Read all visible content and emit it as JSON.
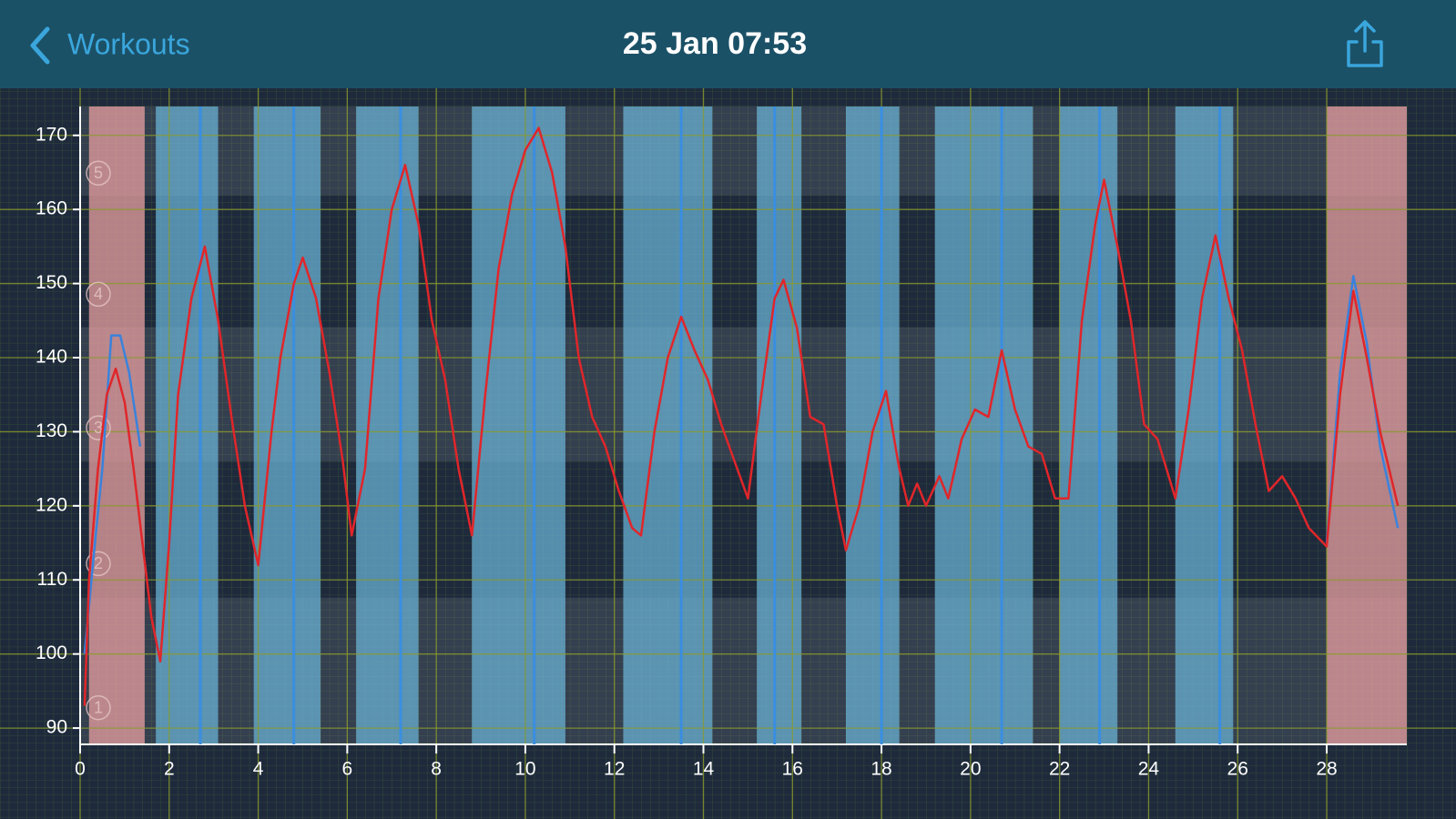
{
  "header": {
    "back": "Workouts",
    "title": "25 Jan 07:53"
  },
  "chart_data": {
    "type": "line",
    "xlim": [
      0,
      29.8
    ],
    "ylim": [
      87.8,
      173.9
    ],
    "xticks": [
      0,
      2,
      4,
      6,
      8,
      10,
      12,
      14,
      16,
      18,
      20,
      22,
      24,
      26,
      28
    ],
    "yticks": [
      90,
      100,
      110,
      120,
      130,
      140,
      150,
      160,
      170
    ],
    "grid": true,
    "zone_bounds": [
      107.6,
      126,
      144.1,
      161.9
    ],
    "zone_labels": [
      "1",
      "2",
      "3",
      "4",
      "5"
    ],
    "warmup_cooldown": [
      [
        0.2,
        1.45
      ],
      [
        28,
        29.8
      ]
    ],
    "work_intervals": [
      [
        1.7,
        3.1
      ],
      [
        3.9,
        5.4
      ],
      [
        6.2,
        7.6
      ],
      [
        8.8,
        10.9
      ],
      [
        12.2,
        14.2
      ],
      [
        15.2,
        16.2
      ],
      [
        17.2,
        18.4
      ],
      [
        19.2,
        21.4
      ],
      [
        22.0,
        23.3
      ],
      [
        24.6,
        25.9
      ]
    ],
    "lap_markers": [
      2.7,
      4.8,
      7.2,
      10.2,
      13.5,
      15.6,
      18.0,
      20.7,
      22.9,
      25.6
    ],
    "series": [
      {
        "color": "#3a82dc",
        "x": [
          0.1,
          0.3,
          0.5,
          0.7,
          0.9,
          1.1,
          1.35,
          14,
          28.0,
          28.3,
          28.6,
          28.9,
          29.2,
          29.6
        ],
        "values": [
          100,
          113,
          125,
          143,
          143,
          138,
          128,
          null,
          115,
          138,
          151,
          142,
          128,
          117
        ]
      },
      {
        "color": "#e0262a",
        "x": [
          0.1,
          0.2,
          0.4,
          0.6,
          0.8,
          1.0,
          1.2,
          1.4,
          1.6,
          1.8,
          2.0,
          2.2,
          2.5,
          2.8,
          3.1,
          3.4,
          3.7,
          4.0,
          4.3,
          4.5,
          4.8,
          5.0,
          5.3,
          5.6,
          5.9,
          6.1,
          6.4,
          6.7,
          7.0,
          7.3,
          7.6,
          7.9,
          8.2,
          8.5,
          8.8,
          9.1,
          9.4,
          9.7,
          10.0,
          10.3,
          10.6,
          10.9,
          11.2,
          11.5,
          11.8,
          12.1,
          12.4,
          12.6,
          12.9,
          13.2,
          13.5,
          13.8,
          14.1,
          14.4,
          14.7,
          15.0,
          15.3,
          15.6,
          15.8,
          16.1,
          16.4,
          16.7,
          17.0,
          17.2,
          17.5,
          17.8,
          18.1,
          18.4,
          18.6,
          18.8,
          19.0,
          19.3,
          19.5,
          19.8,
          20.1,
          20.4,
          20.7,
          21.0,
          21.3,
          21.6,
          21.9,
          22.2,
          22.5,
          22.8,
          23.0,
          23.3,
          23.6,
          23.9,
          24.2,
          24.6,
          24.9,
          25.2,
          25.5,
          25.8,
          26.1,
          26.4,
          26.7,
          27.0,
          27.3,
          27.6,
          28.0,
          28.3,
          28.6,
          28.9,
          29.2,
          29.6
        ],
        "values": [
          93,
          110,
          125,
          135,
          138.5,
          134,
          125,
          115,
          105,
          99,
          115,
          135,
          148,
          155,
          145,
          132,
          120,
          112,
          130,
          140,
          150,
          153.5,
          148,
          138,
          126,
          116,
          125,
          148,
          160,
          166,
          158,
          145,
          137,
          125,
          116,
          135,
          152,
          162,
          168,
          171,
          165,
          155,
          140,
          132,
          128,
          122,
          117,
          116,
          130,
          140,
          145.5,
          141,
          137,
          131,
          126,
          121,
          135,
          148,
          150.5,
          144,
          132,
          131,
          120,
          114,
          120,
          130,
          135.5,
          125,
          120,
          123,
          120,
          124,
          121,
          129,
          133,
          132,
          141,
          133,
          128,
          127,
          121,
          121,
          145,
          158,
          164,
          155,
          145,
          131,
          129,
          121,
          133,
          148,
          156.5,
          148,
          141,
          131,
          122,
          124,
          121,
          117,
          114.5,
          135,
          149,
          140,
          130,
          120
        ]
      }
    ]
  }
}
